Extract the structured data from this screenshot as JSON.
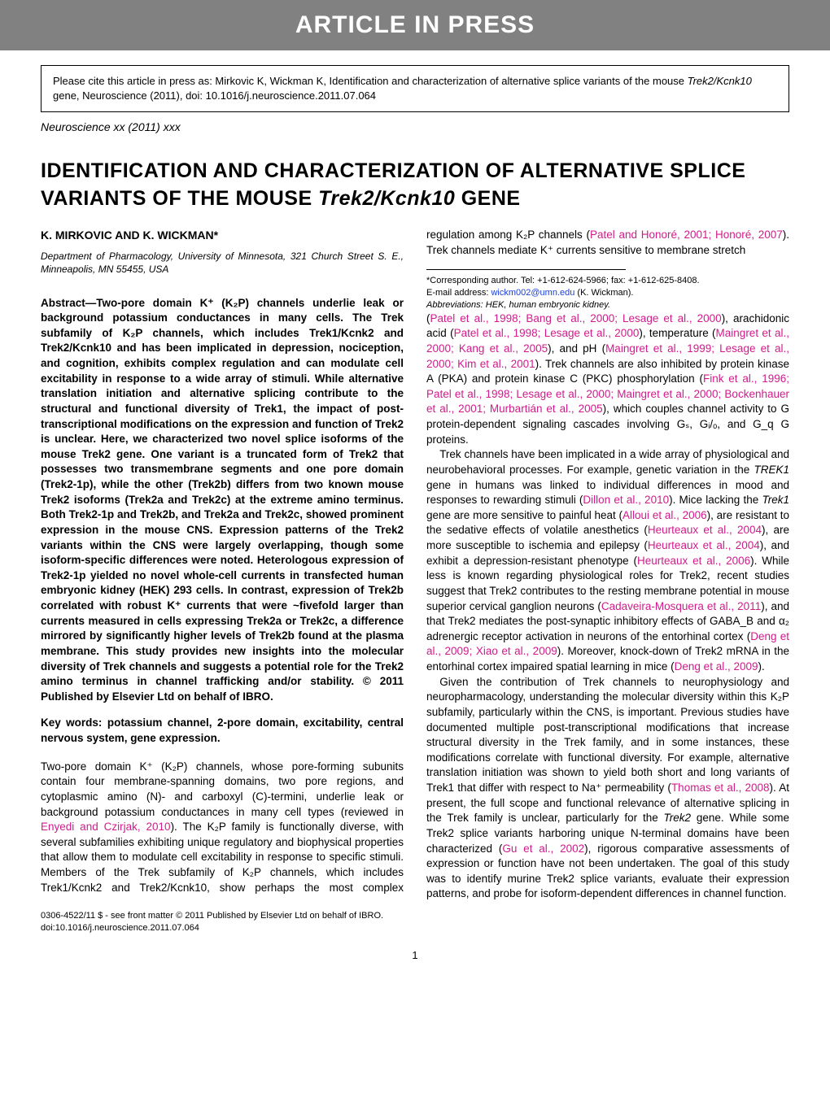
{
  "banner": "ARTICLE IN PRESS",
  "cite_box": {
    "prefix": "Please cite this article in press as: Mirkovic K, Wickman K, Identification and characterization of alternative splice variants of the mouse ",
    "italic": "Trek2/Kcnk10",
    "suffix": " gene, Neuroscience (2011), doi: 10.1016/j.neuroscience.2011.07.064"
  },
  "journal_line": "Neuroscience xx (2011) xxx",
  "title": {
    "part1": "IDENTIFICATION AND CHARACTERIZATION OF ALTERNATIVE SPLICE VARIANTS OF THE MOUSE ",
    "italic": "Trek2/Kcnk10",
    "part2": " GENE"
  },
  "authors": "K. MIRKOVIC AND K. WICKMAN*",
  "affiliation": "Department of Pharmacology, University of Minnesota, 321 Church Street S. E., Minneapolis, MN 55455, USA",
  "abstract": "Abstract—Two-pore domain K⁺ (K₂P) channels underlie leak or background potassium conductances in many cells. The Trek subfamily of K₂P channels, which includes Trek1/Kcnk2 and Trek2/Kcnk10 and has been implicated in depression, nociception, and cognition, exhibits complex regulation and can modulate cell excitability in response to a wide array of stimuli. While alternative translation initiation and alternative splicing contribute to the structural and functional diversity of Trek1, the impact of post-transcriptional modifications on the expression and function of Trek2 is unclear. Here, we characterized two novel splice isoforms of the mouse Trek2 gene. One variant is a truncated form of Trek2 that possesses two transmembrane segments and one pore domain (Trek2-1p), while the other (Trek2b) differs from two known mouse Trek2 isoforms (Trek2a and Trek2c) at the extreme amino terminus. Both Trek2-1p and Trek2b, and Trek2a and Trek2c, showed prominent expression in the mouse CNS. Expression patterns of the Trek2 variants within the CNS were largely overlapping, though some isoform-specific differences were noted. Heterologous expression of Trek2-1p yielded no novel whole-cell currents in transfected human embryonic kidney (HEK) 293 cells. In contrast, expression of Trek2b correlated with robust K⁺ currents that were ~fivefold larger than currents measured in cells expressing Trek2a or Trek2c, a difference mirrored by significantly higher levels of Trek2b found at the plasma membrane. This study provides new insights into the molecular diversity of Trek channels and suggests a potential role for the Trek2 amino terminus in channel trafficking and/or stability. © 2011 Published by Elsevier Ltd on behalf of IBRO.",
  "keywords": "Key words: potassium channel, 2-pore domain, excitability, central nervous system, gene expression.",
  "intro_p1_a": "Two-pore domain K⁺ (K₂P) channels, whose pore-forming subunits contain four membrane-spanning domains, two pore regions, and cytoplasmic amino (N)- and carboxyl (C)-termini, underlie leak or background potassium conductances in many cell types (reviewed in ",
  "intro_p1_ref1": "Enyedi and Czirjak, 2010",
  "intro_p1_b": "). The K₂P family is functionally diverse, with several subfamilies exhibiting unique regulatory and biophysical properties that allow them to modulate cell excitability in response to specific stimuli. Members of the Trek subfamily of K₂P channels, which includes Trek1/Kcnk2 and Trek2/Kcnk10, show perhaps the most complex regulation among K₂P channels (",
  "intro_p1_ref2": "Patel and Honoré, 2001; Honoré, 2007",
  "intro_p1_c": "). Trek channels mediate K⁺ currents sensitive to membrane stretch",
  "col2_p1_a": "(",
  "col2_p1_ref1": "Patel et al., 1998; Bang et al., 2000; Lesage et al., 2000",
  "col2_p1_b": "), arachidonic acid (",
  "col2_p1_ref2": "Patel et al., 1998; Lesage et al., 2000",
  "col2_p1_c": "), temperature (",
  "col2_p1_ref3": "Maingret et al., 2000; Kang et al., 2005",
  "col2_p1_d": "), and pH (",
  "col2_p1_ref4": "Maingret et al., 1999; Lesage et al., 2000; Kim et al., 2001",
  "col2_p1_e": "). Trek channels are also inhibited by protein kinase A (PKA) and protein kinase C (PKC) phosphorylation (",
  "col2_p1_ref5": "Fink et al., 1996; Patel et al., 1998; Lesage et al., 2000; Maingret et al., 2000; Bockenhauer et al., 2001; Murbartián et al., 2005",
  "col2_p1_f": "), which couples channel activity to G protein-dependent signaling cascades involving Gₛ, Gᵢ/ₒ, and G_q G proteins.",
  "col2_p2_a": "Trek channels have been implicated in a wide array of physiological and neurobehavioral processes. For example, genetic variation in the ",
  "col2_p2_it1": "TREK1",
  "col2_p2_b": " gene in humans was linked to individual differences in mood and responses to rewarding stimuli (",
  "col2_p2_ref1": "Dillon et al., 2010",
  "col2_p2_c": "). Mice lacking the ",
  "col2_p2_it2": "Trek1",
  "col2_p2_d": " gene are more sensitive to painful heat (",
  "col2_p2_ref2": "Alloui et al., 2006",
  "col2_p2_e": "), are resistant to the sedative effects of volatile anesthetics (",
  "col2_p2_ref3": "Heurteaux et al., 2004",
  "col2_p2_f": "), are more susceptible to ischemia and epilepsy (",
  "col2_p2_ref4": "Heurteaux et al., 2004",
  "col2_p2_g": "), and exhibit a depression-resistant phenotype (",
  "col2_p2_ref5": "Heurteaux et al., 2006",
  "col2_p2_h": "). While less is known regarding physiological roles for Trek2, recent studies suggest that Trek2 contributes to the resting membrane potential in mouse superior cervical ganglion neurons (",
  "col2_p2_ref6": "Cadaveira-Mosquera et al., 2011",
  "col2_p2_i": "), and that Trek2 mediates the post-synaptic inhibitory effects of GABA_B and α₂ adrenergic receptor activation in neurons of the entorhinal cortex (",
  "col2_p2_ref7": "Deng et al., 2009; Xiao et al., 2009",
  "col2_p2_j": "). Moreover, knock-down of Trek2 mRNA in the entorhinal cortex impaired spatial learning in mice (",
  "col2_p2_ref8": "Deng et al., 2009",
  "col2_p2_k": ").",
  "col2_p3_a": "Given the contribution of Trek channels to neurophysiology and neuropharmacology, understanding the molecular diversity within this K₂P subfamily, particularly within the CNS, is important. Previous studies have documented multiple post-transcriptional modifications that increase structural diversity in the Trek family, and in some instances, these modifications correlate with functional diversity. For example, alternative translation initiation was shown to yield both short and long variants of Trek1 that differ with respect to Na⁺ permeability (",
  "col2_p3_ref1": "Thomas et al., 2008",
  "col2_p3_b": "). At present, the full scope and functional relevance of alternative splicing in the Trek family is unclear, particularly for the ",
  "col2_p3_it1": "Trek2",
  "col2_p3_c": " gene. While some Trek2 splice variants harboring unique N-terminal domains have been characterized (",
  "col2_p3_ref2": "Gu et al., 2002",
  "col2_p3_d": "), rigorous comparative assessments of expression or function have not been undertaken. The goal of this study was to identify murine Trek2 splice variants, evaluate their expression patterns, and probe for isoform-dependent differences in channel function.",
  "footnote": {
    "corresponding": "*Corresponding author. Tel: +1-612-624-5966; fax: +1-612-625-8408.",
    "email_label": "E-mail address: ",
    "email": "wickm002@umn.edu",
    "email_suffix": " (K. Wickman).",
    "abbrev": "Abbreviations: HEK, human embryonic kidney."
  },
  "footer": {
    "line1": "0306-4522/11 $ - see front matter © 2011 Published by Elsevier Ltd on behalf of IBRO.",
    "line2": "doi:10.1016/j.neuroscience.2011.07.064"
  },
  "page_number": "1",
  "colors": {
    "banner_bg": "#818181",
    "ref_color": "#d11b8c",
    "link_color": "#1a3fd6"
  }
}
